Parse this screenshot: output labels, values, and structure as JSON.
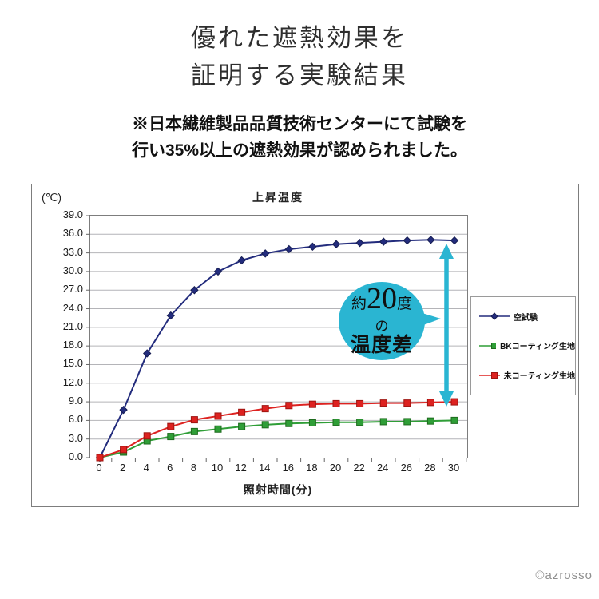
{
  "header": {
    "title_line1": "優れた遮熱効果を",
    "title_line2": "証明する実験結果"
  },
  "note": {
    "line1": "※日本繊維製品品質技術センターにて試験を",
    "line2": "行い35%以上の遮熱効果が認められました。"
  },
  "chart_data": {
    "type": "line",
    "title": "上昇温度",
    "y_unit_label": "(℃)",
    "xlabel": "照射時間(分)",
    "ylabel": "",
    "ylim": [
      0,
      39
    ],
    "y_tick_step": 3,
    "y_tick_labels": [
      "39.0",
      "36.0",
      "33.0",
      "30.0",
      "27.0",
      "24.0",
      "21.0",
      "18.0",
      "15.0",
      "12.0",
      "9.0",
      "6.0",
      "3.0",
      "0.0"
    ],
    "x": [
      0,
      2,
      4,
      6,
      8,
      10,
      12,
      14,
      16,
      18,
      20,
      22,
      24,
      26,
      28,
      30
    ],
    "x_tick_labels": [
      "0",
      "2",
      "4",
      "6",
      "8",
      "10",
      "12",
      "14",
      "16",
      "18",
      "20",
      "22",
      "24",
      "26",
      "28",
      "30"
    ],
    "grid": "horizontal",
    "legend_position": "right",
    "series": [
      {
        "name": "空試験",
        "color": "#232c7d",
        "marker": "diamond",
        "marker_border": "#161d52",
        "values": [
          0,
          7.7,
          16.8,
          22.9,
          27.0,
          30.0,
          31.8,
          32.9,
          33.6,
          34.0,
          34.4,
          34.6,
          34.8,
          35.0,
          35.1,
          35.0
        ]
      },
      {
        "name": "BKコーティング生地",
        "color": "#2f9e37",
        "marker": "square",
        "marker_border": "#1e6b1e",
        "values": [
          0,
          0.9,
          2.7,
          3.4,
          4.2,
          4.6,
          5.0,
          5.3,
          5.5,
          5.6,
          5.7,
          5.7,
          5.8,
          5.8,
          5.9,
          6.0
        ]
      },
      {
        "name": "未コーティング生地",
        "color": "#dd2220",
        "marker": "square",
        "marker_border": "#9e1410",
        "values": [
          0,
          1.3,
          3.5,
          5.0,
          6.1,
          6.7,
          7.3,
          7.9,
          8.4,
          8.6,
          8.7,
          8.7,
          8.8,
          8.8,
          8.9,
          9.0
        ]
      }
    ]
  },
  "annotation": {
    "approx": "約",
    "value": "20",
    "unit": "度",
    "particle": "の",
    "label": "温度差",
    "bubble_color": "#2ab5d2",
    "arrow_color": "#2ab5d2"
  },
  "footer": {
    "copyright": "©azrosso"
  }
}
